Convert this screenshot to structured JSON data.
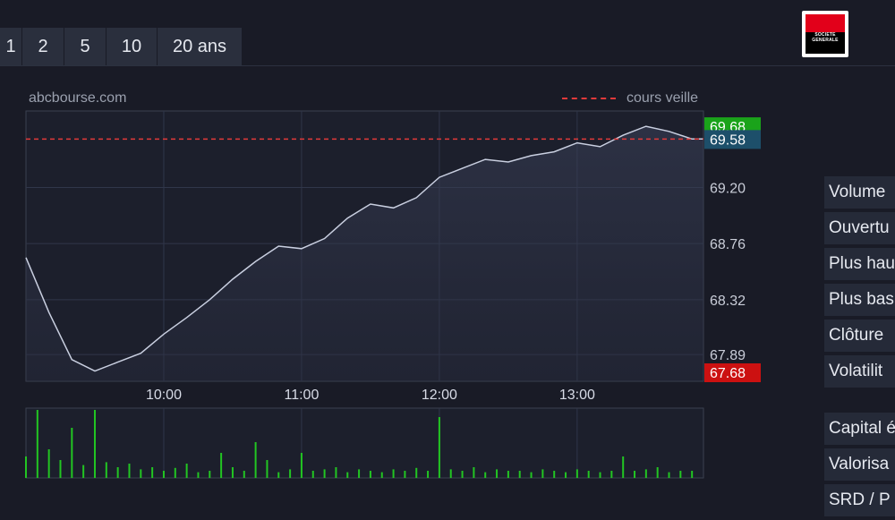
{
  "tabs": [
    "1",
    "2",
    "5",
    "10",
    "20 ans"
  ],
  "source": "abcbourse.com",
  "legend_label": "cours veille",
  "logo_text": "SOCIETE GENERALE",
  "price_tags": {
    "high": "69.68",
    "prev_close": "69.58",
    "low": "67.68"
  },
  "stats": [
    "Volume",
    "Ouvertu",
    "Plus hau",
    "Plus bas",
    "Clôture",
    "Volatilit"
  ],
  "stats2": [
    "Capital é",
    "Valorisa",
    "SRD / P"
  ],
  "colors": {
    "line": "#c9cfe0",
    "prev_close": "#e23a3a",
    "high_tag": "#1aa31a",
    "prev_tag": "#1d4f6a",
    "low_tag": "#cc1111",
    "volume": "#22c522"
  },
  "chart_data": {
    "type": "line",
    "xlabel": "",
    "ylabel": "",
    "x_ticks": [
      "10:00",
      "11:00",
      "12:00",
      "13:00"
    ],
    "y_ticks": [
      69.2,
      68.76,
      68.32,
      67.89
    ],
    "ylim": [
      67.68,
      69.8
    ],
    "prev_close": 69.58,
    "high": 69.68,
    "low": 67.68,
    "grid": true,
    "x": [
      "09:00",
      "09:10",
      "09:20",
      "09:30",
      "09:40",
      "09:50",
      "10:00",
      "10:10",
      "10:20",
      "10:30",
      "10:40",
      "10:50",
      "11:00",
      "11:10",
      "11:20",
      "11:30",
      "11:40",
      "11:50",
      "12:00",
      "12:10",
      "12:20",
      "12:30",
      "12:40",
      "12:50",
      "13:00",
      "13:10",
      "13:20",
      "13:30",
      "13:40",
      "13:50"
    ],
    "values": [
      68.65,
      68.22,
      67.85,
      67.76,
      67.83,
      67.9,
      68.05,
      68.18,
      68.32,
      68.48,
      68.62,
      68.74,
      68.72,
      68.8,
      68.96,
      69.07,
      69.04,
      69.12,
      69.28,
      69.35,
      69.42,
      69.4,
      69.45,
      69.48,
      69.55,
      69.52,
      69.61,
      69.68,
      69.64,
      69.58
    ],
    "volume": {
      "x": [
        "09:00",
        "09:05",
        "09:10",
        "09:15",
        "09:20",
        "09:25",
        "09:30",
        "09:35",
        "09:40",
        "09:45",
        "09:50",
        "09:55",
        "10:00",
        "10:05",
        "10:10",
        "10:15",
        "10:20",
        "10:25",
        "10:30",
        "10:35",
        "10:40",
        "10:45",
        "10:50",
        "10:55",
        "11:00",
        "11:05",
        "11:10",
        "11:15",
        "11:20",
        "11:25",
        "11:30",
        "11:35",
        "11:40",
        "11:45",
        "11:50",
        "11:55",
        "12:00",
        "12:05",
        "12:10",
        "12:15",
        "12:20",
        "12:25",
        "12:30",
        "12:35",
        "12:40",
        "12:45",
        "12:50",
        "12:55",
        "13:00",
        "13:05",
        "13:10",
        "13:15",
        "13:20",
        "13:25",
        "13:30",
        "13:35",
        "13:40",
        "13:45",
        "13:50"
      ],
      "values": [
        30,
        95,
        40,
        25,
        70,
        18,
        95,
        22,
        15,
        20,
        12,
        15,
        10,
        14,
        20,
        8,
        10,
        35,
        15,
        10,
        50,
        25,
        8,
        12,
        35,
        10,
        12,
        15,
        8,
        12,
        10,
        8,
        12,
        10,
        14,
        10,
        85,
        12,
        10,
        15,
        8,
        12,
        10,
        10,
        8,
        12,
        10,
        8,
        12,
        10,
        8,
        10,
        30,
        10,
        12,
        15,
        8,
        10,
        10
      ]
    }
  }
}
